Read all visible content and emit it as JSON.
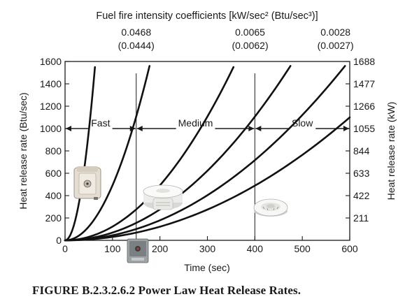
{
  "chart_data": {
    "type": "line",
    "title": "Fuel fire intensity coefficients [kW/sec² (Btu/sec³)]",
    "xlabel": "Time (sec)",
    "ylabel": "Heat release rate (Btu/sec)",
    "y2label": "Heat release rate (kW)",
    "xlim": [
      0,
      600
    ],
    "ylim": [
      0,
      1600
    ],
    "x_ticks": [
      "0",
      "100",
      "200",
      "300",
      "400",
      "500",
      "600"
    ],
    "y_ticks": [
      "0",
      "200",
      "400",
      "600",
      "800",
      "1000",
      "1200",
      "1400",
      "1600"
    ],
    "y2_ticks": [
      {
        "y": 200,
        "label": "211"
      },
      {
        "y": 400,
        "label": "422"
      },
      {
        "y": 600,
        "label": "633"
      },
      {
        "y": 800,
        "label": "844"
      },
      {
        "y": 1000,
        "label": "1055"
      },
      {
        "y": 1200,
        "label": "1266"
      },
      {
        "y": 1400,
        "label": "1477"
      },
      {
        "y": 1600,
        "label": "1688"
      }
    ],
    "series": [
      {
        "end_x": 63,
        "end_y": 1550
      },
      {
        "end_x": 178,
        "end_y": 1560
      },
      {
        "end_x": 355,
        "end_y": 1550
      },
      {
        "end_x": 475,
        "end_y": 1560
      },
      {
        "end_x": 590,
        "end_y": 1560
      },
      {
        "end_x": 600,
        "end_y": 1100
      }
    ],
    "coefficients": [
      {
        "x": 150,
        "value": "0.0468",
        "paren": "(0.0444)"
      },
      {
        "x": 390,
        "value": "0.0065",
        "paren": "(0.0062)"
      },
      {
        "x": 570,
        "value": "0.0028",
        "paren": "(0.0027)"
      }
    ],
    "regions": [
      {
        "label": "Fast",
        "x0": 0,
        "x1": 150
      },
      {
        "label": "Medium",
        "x0": 150,
        "x1": 400
      },
      {
        "label": "Slow",
        "x0": 400,
        "x1": 600
      }
    ],
    "divider_lines": [
      150,
      400
    ],
    "arrow_y": 1000,
    "grid": false
  },
  "figure_caption": "FIGURE B.2.3.2.6.2   Power Law Heat Release Rates.",
  "icons": [
    "heat-detector-square-icon",
    "smoke-detector-icon",
    "flame-detector-icon",
    "smoke-detector-low-icon"
  ]
}
